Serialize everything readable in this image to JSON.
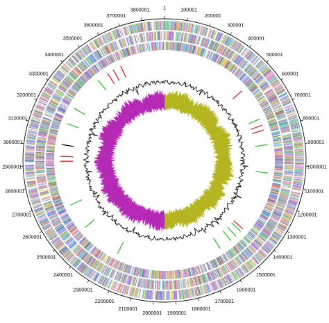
{
  "genome": {
    "length": 3900000,
    "labels": [
      {
        "pos": 1,
        "text": "1"
      },
      {
        "pos": 100001,
        "text": "100001"
      },
      {
        "pos": 200001,
        "text": "200001"
      },
      {
        "pos": 300001,
        "text": "300001"
      },
      {
        "pos": 400001,
        "text": "400001"
      },
      {
        "pos": 500001,
        "text": "500001"
      },
      {
        "pos": 600001,
        "text": "600001"
      },
      {
        "pos": 700001,
        "text": "700001"
      },
      {
        "pos": 800001,
        "text": "800001"
      },
      {
        "pos": 900001,
        "text": "900001"
      },
      {
        "pos": 1000001,
        "text": "1000001"
      },
      {
        "pos": 1100001,
        "text": "1100001"
      },
      {
        "pos": 1200001,
        "text": "1200001"
      },
      {
        "pos": 1300001,
        "text": "1300001"
      },
      {
        "pos": 1400001,
        "text": "1400001"
      },
      {
        "pos": 1500001,
        "text": "1500001"
      },
      {
        "pos": 1600001,
        "text": "1600001"
      },
      {
        "pos": 1700001,
        "text": "1700001"
      },
      {
        "pos": 1800001,
        "text": "1800001"
      },
      {
        "pos": 1900001,
        "text": "1900001"
      },
      {
        "pos": 2000001,
        "text": "2000001"
      },
      {
        "pos": 2100001,
        "text": "2100001"
      },
      {
        "pos": 2200001,
        "text": "2200001"
      },
      {
        "pos": 2300001,
        "text": "2300001"
      },
      {
        "pos": 2400001,
        "text": "2400001"
      },
      {
        "pos": 2500001,
        "text": "2500001"
      },
      {
        "pos": 2600001,
        "text": "2600001"
      },
      {
        "pos": 2700001,
        "text": "2700001"
      },
      {
        "pos": 2800001,
        "text": "2800001"
      },
      {
        "pos": 2900001,
        "text": "2900001"
      },
      {
        "pos": 3000001,
        "text": "3000001"
      },
      {
        "pos": 3100001,
        "text": "3100001"
      },
      {
        "pos": 3200001,
        "text": "3200001"
      },
      {
        "pos": 3300001,
        "text": "3300001"
      },
      {
        "pos": 3400001,
        "text": "3400001"
      },
      {
        "pos": 3500001,
        "text": "3500001"
      },
      {
        "pos": 3600001,
        "text": "3600001"
      },
      {
        "pos": 3700001,
        "text": "3700001"
      },
      {
        "pos": 3800001,
        "text": "3800001"
      }
    ]
  },
  "colors": {
    "cog_palette": [
      "#e05a5a",
      "#7a7ad6",
      "#5ab85a",
      "#d67ad6",
      "#c8a040",
      "#5ac8c8",
      "#a0a0a0",
      "#3a5ad0",
      "#e08ac0",
      "#8ad08a",
      "#d0d050",
      "#9a5ad0",
      "#40a0e0",
      "#d0a0a0",
      "#606060"
    ],
    "rna_red": "#e02020",
    "rna_green": "#30c030",
    "gc_content": "#000000",
    "gc_skew_positive": "#b5b522",
    "gc_skew_negative": "#b52ab5",
    "backbone": "#000000"
  },
  "tracks": {
    "rna_features": [
      {
        "pos": 3540000,
        "color": "red"
      },
      {
        "pos": 3580000,
        "color": "red"
      },
      {
        "pos": 3630000,
        "color": "red"
      },
      {
        "pos": 3470000,
        "color": "green"
      },
      {
        "pos": 520000,
        "color": "red"
      },
      {
        "pos": 760000,
        "color": "red"
      },
      {
        "pos": 790000,
        "color": "red"
      },
      {
        "pos": 720000,
        "color": "green"
      },
      {
        "pos": 880000,
        "color": "green"
      },
      {
        "pos": 1050000,
        "color": "green"
      },
      {
        "pos": 1420000,
        "color": "red"
      },
      {
        "pos": 1440000,
        "color": "green"
      },
      {
        "pos": 1480000,
        "color": "green"
      },
      {
        "pos": 1520000,
        "color": "green"
      },
      {
        "pos": 1600000,
        "color": "green"
      },
      {
        "pos": 2240000,
        "color": "green"
      },
      {
        "pos": 2490000,
        "color": "green"
      },
      {
        "pos": 2650000,
        "color": "green"
      },
      {
        "pos": 2920000,
        "color": "red"
      },
      {
        "pos": 2950000,
        "color": "red"
      },
      {
        "pos": 3020000,
        "color": "black"
      },
      {
        "pos": 3150000,
        "color": "green"
      },
      {
        "pos": 3250000,
        "color": "green"
      }
    ],
    "gc_skew_switch": [
      0.0,
      0.5
    ]
  }
}
